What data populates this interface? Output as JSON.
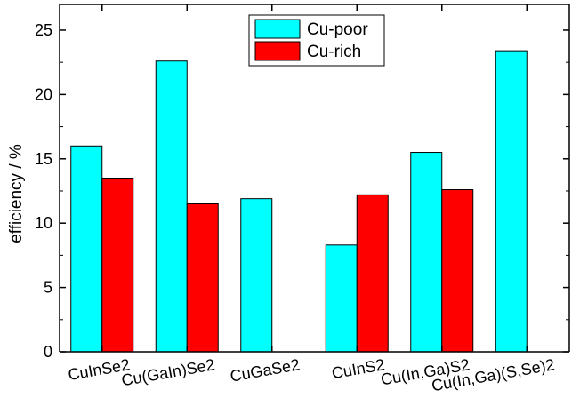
{
  "chart_data": {
    "type": "bar",
    "categories": [
      "CuInSe2",
      "Cu(GaIn)Se2",
      "CuGaSe2",
      "CuInS2",
      "Cu(In,Ga)S2",
      "Cu(In,Ga)(S,Se)2"
    ],
    "series": [
      {
        "name": "Cu-poor",
        "color": "#00ffff",
        "values": [
          16.0,
          22.6,
          11.9,
          8.3,
          15.5,
          23.4
        ]
      },
      {
        "name": "Cu-rich",
        "color": "#ff0000",
        "values": [
          13.5,
          11.5,
          null,
          12.2,
          12.6,
          null
        ]
      }
    ],
    "ylabel": "efficiency / %",
    "ylim": [
      0,
      27
    ],
    "yticks": [
      0,
      5,
      10,
      15,
      20,
      25
    ],
    "legend_position": "top-center",
    "grid": false
  }
}
